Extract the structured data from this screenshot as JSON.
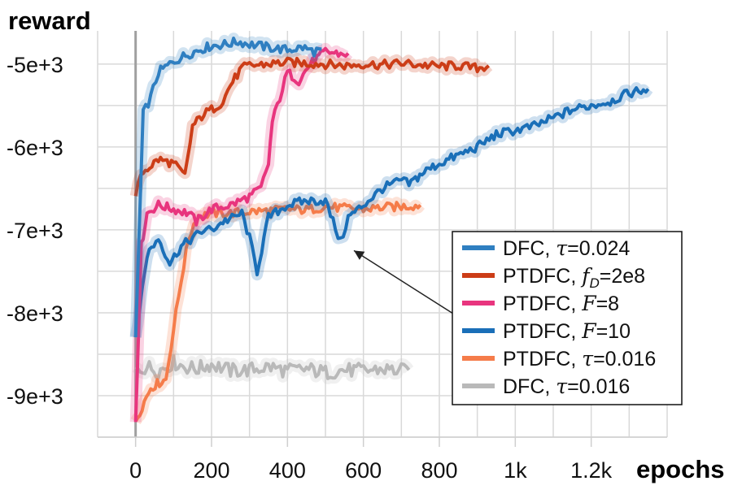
{
  "chart_data": {
    "type": "line",
    "xlabel": "epochs",
    "ylabel": "reward",
    "xlim": [
      -100,
      1400
    ],
    "ylim": [
      -9500,
      -4600
    ],
    "x_ticks": [
      0,
      200,
      400,
      600,
      800,
      1000,
      1200
    ],
    "x_tick_labels": [
      "0",
      "200",
      "400",
      "600",
      "800",
      "1k",
      "1.2k"
    ],
    "y_ticks": [
      -5000,
      -6000,
      -7000,
      -8000,
      -9000
    ],
    "y_tick_labels": [
      "-5e+3",
      "-6e+3",
      "-7e+3",
      "-8e+3",
      "-9e+3"
    ],
    "grid": true,
    "legend_position": "right",
    "annotation": {
      "type": "arrow",
      "from": [
        850,
        -8050
      ],
      "to": [
        575,
        -7250
      ]
    },
    "series": [
      {
        "name": "DFC, τ=0.024",
        "legend_name": "DFC, ",
        "legend_param": "τ",
        "legend_value": "=0.024",
        "color": "#2f7fc1",
        "x": [
          0,
          20,
          40,
          60,
          90,
          120,
          160,
          200,
          240,
          270,
          300,
          350,
          400,
          440,
          470,
          490
        ],
        "y": [
          -8300,
          -5600,
          -5400,
          -5100,
          -5000,
          -4920,
          -4840,
          -4780,
          -4760,
          -4730,
          -4760,
          -4800,
          -4830,
          -4800,
          -4850,
          -4820
        ]
      },
      {
        "name": "PTDFC, fD=2e8",
        "legend_name": "PTDFC, ",
        "legend_param": "f",
        "legend_sub": "D",
        "legend_value": "=2e8",
        "color": "#cc3d17",
        "x": [
          0,
          20,
          60,
          100,
          130,
          150,
          180,
          200,
          230,
          250,
          280,
          300,
          350,
          400,
          450,
          500,
          550,
          600,
          650,
          700,
          750,
          800,
          850,
          900,
          930
        ],
        "y": [
          -6550,
          -6300,
          -6150,
          -6200,
          -6350,
          -5750,
          -5600,
          -5550,
          -5450,
          -5250,
          -5050,
          -5020,
          -5000,
          -4980,
          -4990,
          -5000,
          -5020,
          -5000,
          -5010,
          -4990,
          -5010,
          -5030,
          -5020,
          -5050,
          -5020
        ]
      },
      {
        "name": "PTDFC, F=8",
        "legend_name": "PTDFC, ",
        "legend_param": "F",
        "legend_value": "=8",
        "color": "#e8357e",
        "x": [
          0,
          15,
          30,
          60,
          100,
          140,
          160,
          200,
          250,
          300,
          330,
          350,
          360,
          380,
          400,
          430,
          460,
          500,
          540,
          560
        ],
        "y": [
          -9300,
          -7200,
          -6800,
          -6700,
          -6750,
          -6800,
          -6900,
          -6750,
          -6700,
          -6600,
          -6500,
          -6200,
          -5700,
          -5400,
          -5100,
          -5200,
          -5000,
          -4850,
          -4880,
          -4870
        ]
      },
      {
        "name": "PTDFC, F=10",
        "legend_name": "PTDFC, ",
        "legend_param": "F",
        "legend_value": "=10",
        "color": "#1a6fb8",
        "x": [
          0,
          30,
          60,
          90,
          120,
          150,
          180,
          200,
          230,
          260,
          280,
          300,
          320,
          350,
          400,
          450,
          500,
          520,
          540,
          560,
          600,
          650,
          700,
          720,
          760,
          800,
          850,
          900,
          950,
          1000,
          1050,
          1100,
          1150,
          1200,
          1250,
          1300,
          1350
        ],
        "y": [
          -8300,
          -7300,
          -7100,
          -7400,
          -7200,
          -7100,
          -7000,
          -7000,
          -6900,
          -6850,
          -6800,
          -7100,
          -7500,
          -6850,
          -6700,
          -6650,
          -6650,
          -6900,
          -7150,
          -6850,
          -6700,
          -6500,
          -6400,
          -6450,
          -6300,
          -6200,
          -6100,
          -6000,
          -5850,
          -5800,
          -5750,
          -5650,
          -5550,
          -5500,
          -5450,
          -5350,
          -5300
        ]
      },
      {
        "name": "PTDFC, τ=0.016",
        "legend_name": "PTDFC, ",
        "legend_param": "τ",
        "legend_value": "=0.016",
        "color": "#f57c4a",
        "x": [
          0,
          40,
          80,
          100,
          120,
          140,
          160,
          200,
          250,
          300,
          350,
          400,
          450,
          500,
          550,
          600,
          650,
          700,
          750
        ],
        "y": [
          -9300,
          -8900,
          -8800,
          -8200,
          -7600,
          -7100,
          -6850,
          -6800,
          -6800,
          -6780,
          -6770,
          -6750,
          -6760,
          -6720,
          -6740,
          -6750,
          -6730,
          -6720,
          -6700
        ]
      },
      {
        "name": "DFC, τ=0.016",
        "legend_name": "DFC, ",
        "legend_param": "τ",
        "legend_value": "=0.016",
        "color": "#b9b9b9",
        "x": [
          0,
          30,
          60,
          100,
          130,
          160,
          200,
          250,
          300,
          350,
          400,
          450,
          500,
          550,
          600,
          650,
          700,
          720
        ],
        "y": [
          -8700,
          -8650,
          -8700,
          -8600,
          -8650,
          -8680,
          -8620,
          -8700,
          -8690,
          -8650,
          -8700,
          -8680,
          -8720,
          -8690,
          -8700,
          -8680,
          -8700,
          -8690
        ]
      }
    ]
  }
}
